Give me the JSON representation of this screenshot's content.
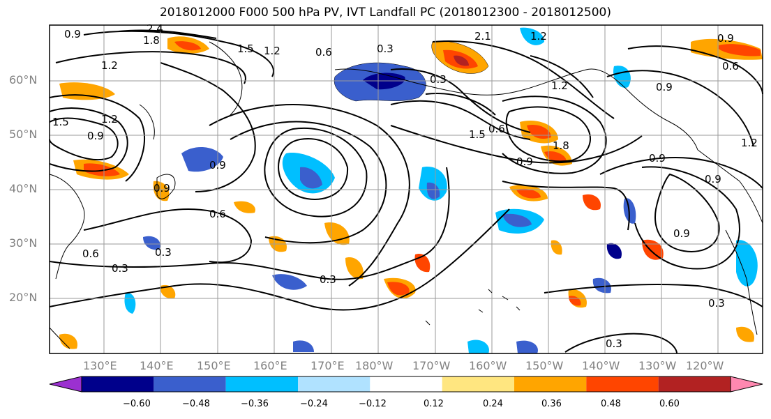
{
  "title": "2018012000 F000 500 hPa PV, IVT Landfall PC (2018012300 - 2018012500)",
  "lat_labels": [
    "60°N",
    "50°N",
    "40°N",
    "30°N",
    "20°N"
  ],
  "lon_labels": [
    "130°E",
    "140°E",
    "150°E",
    "160°E",
    "170°E",
    "180°W",
    "170°W",
    "160°W",
    "150°W",
    "140°W",
    "130°W",
    "120°W"
  ],
  "contour_labels": [
    "0.9",
    "2.4",
    "1.8",
    "1.5",
    "1.2",
    "1.2",
    "0.6",
    "2.1",
    "1.2",
    "0.9",
    "0.6",
    "1.5",
    "1.2",
    "0.9",
    "0.3",
    "0.6",
    "1.8",
    "1.5",
    "0.9",
    "0.9",
    "0.9",
    "0.9",
    "0.6",
    "0.3",
    "0.3",
    "0.6",
    "0.3",
    "0.3",
    "0.3",
    "0.9",
    "0.3",
    "1.2",
    "0.9",
    "1.2",
    "0.9"
  ],
  "colorbar": {
    "ticks": [
      "−0.60",
      "−0.48",
      "−0.36",
      "−0.24",
      "−0.12",
      "0.12",
      "0.24",
      "0.36",
      "0.48",
      "0.60"
    ],
    "colors": [
      "#9b30d0",
      "#00008b",
      "#3a5fcd",
      "#00bfff",
      "#b0e2ff",
      "#ffffff",
      "#ffe680",
      "#ffa500",
      "#ff4500",
      "#b22222",
      "#ff88b0"
    ]
  }
}
